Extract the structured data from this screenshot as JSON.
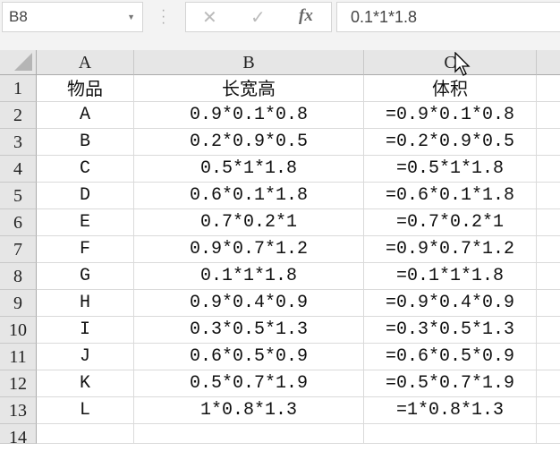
{
  "formula_bar": {
    "name_box": "B8",
    "cancel_icon": "✕",
    "confirm_icon": "✓",
    "fx_label": "fx",
    "formula": "0.1*1*1.8"
  },
  "columns": [
    "A",
    "B",
    "C",
    ""
  ],
  "rows": [
    {
      "num": "1",
      "cells": [
        "物品",
        "长宽高",
        "体积"
      ]
    },
    {
      "num": "2",
      "cells": [
        "A",
        "0.9*0.1*0.8",
        "=0.9*0.1*0.8"
      ]
    },
    {
      "num": "3",
      "cells": [
        "B",
        "0.2*0.9*0.5",
        "=0.2*0.9*0.5"
      ]
    },
    {
      "num": "4",
      "cells": [
        "C",
        "0.5*1*1.8",
        "=0.5*1*1.8"
      ]
    },
    {
      "num": "5",
      "cells": [
        "D",
        "0.6*0.1*1.8",
        "=0.6*0.1*1.8"
      ]
    },
    {
      "num": "6",
      "cells": [
        "E",
        "0.7*0.2*1",
        "=0.7*0.2*1"
      ]
    },
    {
      "num": "7",
      "cells": [
        "F",
        "0.9*0.7*1.2",
        "=0.9*0.7*1.2"
      ]
    },
    {
      "num": "8",
      "cells": [
        "G",
        "0.1*1*1.8",
        "=0.1*1*1.8"
      ]
    },
    {
      "num": "9",
      "cells": [
        "H",
        "0.9*0.4*0.9",
        "=0.9*0.4*0.9"
      ]
    },
    {
      "num": "10",
      "cells": [
        "I",
        "0.3*0.5*1.3",
        "=0.3*0.5*1.3"
      ]
    },
    {
      "num": "11",
      "cells": [
        "J",
        "0.6*0.5*0.9",
        "=0.6*0.5*0.9"
      ]
    },
    {
      "num": "12",
      "cells": [
        "K",
        "0.5*0.7*1.9",
        "=0.5*0.7*1.9"
      ]
    },
    {
      "num": "13",
      "cells": [
        "L",
        "1*0.8*1.3",
        "=1*0.8*1.3"
      ]
    },
    {
      "num": "14",
      "cells": [
        "",
        "",
        ""
      ]
    }
  ]
}
